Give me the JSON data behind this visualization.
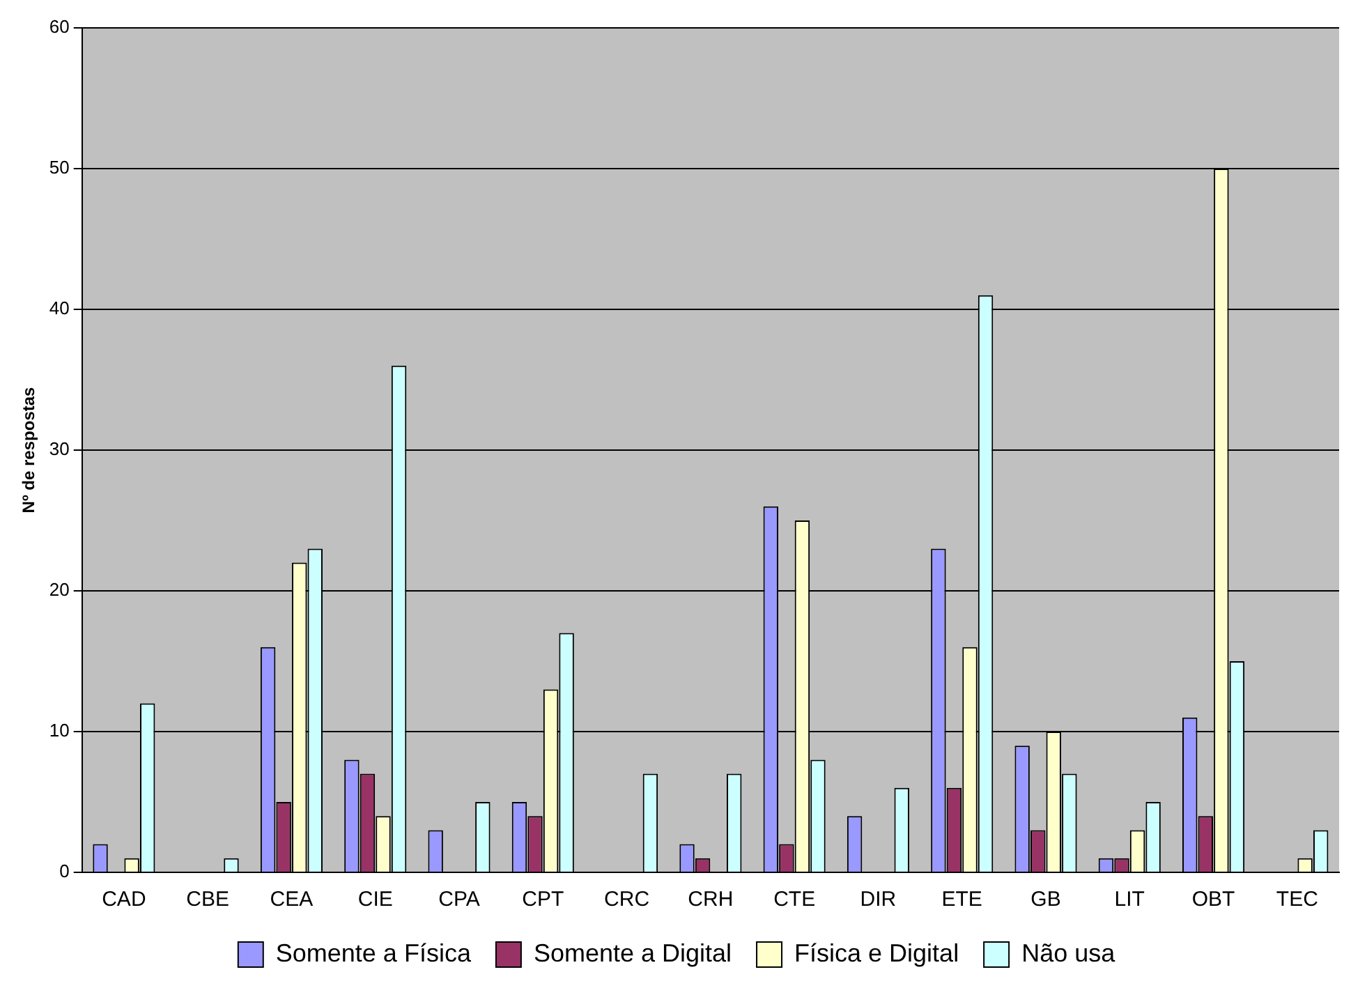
{
  "chart_data": {
    "type": "bar",
    "ylabel": "Nº de respostas",
    "categories": [
      "CAD",
      "CBE",
      "CEA",
      "CIE",
      "CPA",
      "CPT",
      "CRC",
      "CRH",
      "CTE",
      "DIR",
      "ETE",
      "GB",
      "LIT",
      "OBT",
      "TEC"
    ],
    "series": [
      {
        "name": "Somente a Física",
        "color": "#9999ff",
        "values": [
          2,
          0,
          16,
          8,
          3,
          5,
          0,
          2,
          26,
          4,
          23,
          9,
          1,
          11,
          0
        ]
      },
      {
        "name": "Somente a Digital",
        "color": "#993366",
        "values": [
          0,
          0,
          5,
          7,
          0,
          4,
          0,
          1,
          2,
          0,
          6,
          3,
          1,
          4,
          0
        ]
      },
      {
        "name": "Física e Digital",
        "color": "#ffffcc",
        "values": [
          1,
          0,
          22,
          4,
          0,
          13,
          0,
          0,
          25,
          0,
          16,
          10,
          3,
          50,
          1
        ]
      },
      {
        "name": "Não usa",
        "color": "#ccffff",
        "values": [
          12,
          1,
          23,
          36,
          5,
          17,
          7,
          7,
          8,
          6,
          41,
          7,
          5,
          15,
          3
        ]
      }
    ],
    "ylim": [
      0,
      60
    ],
    "yticks": [
      0,
      10,
      20,
      30,
      40,
      50,
      60
    ],
    "grid": "y",
    "legend": "bottom"
  }
}
